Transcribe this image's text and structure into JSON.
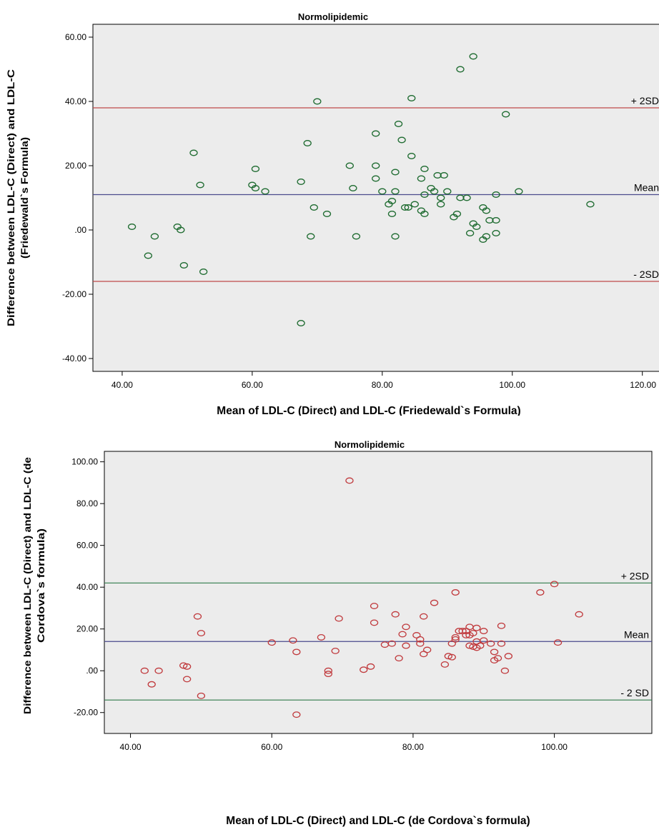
{
  "chart_data": [
    {
      "type": "scatter",
      "title": "Normolipidemic",
      "xlabel": "Mean of LDL-C (Direct) and LDL-C (Friedewald`s Formula)",
      "ylabel_lines": [
        "Difference between LDL-C (Direct) and LDL-C",
        "(Friedewald`s Formula)"
      ],
      "xlim": [
        35.5,
        123
      ],
      "ylim": [
        -44,
        64
      ],
      "x_ticks": [
        40,
        60,
        80,
        100,
        120
      ],
      "x_tick_labels": [
        "40.00",
        "60.00",
        "80.00",
        "100.00",
        "120.00"
      ],
      "y_ticks": [
        60,
        40,
        20,
        0,
        -20,
        -40
      ],
      "y_tick_labels": [
        "60.00",
        "40.00",
        "20.00",
        ".00",
        "-20.00",
        "-40.00"
      ],
      "marker_color": "#1e6b30",
      "background": "#ececec",
      "reference_lines": [
        {
          "label": "+ 2SD",
          "y": 38,
          "color": "#c0484a"
        },
        {
          "label": "Mean",
          "y": 11,
          "color": "#4a4a8c"
        },
        {
          "label": "- 2SD",
          "y": -16,
          "color": "#c0484a"
        }
      ],
      "points": [
        [
          41.5,
          1
        ],
        [
          44,
          -8
        ],
        [
          45,
          -2
        ],
        [
          48.5,
          1
        ],
        [
          49,
          0
        ],
        [
          49.5,
          -11
        ],
        [
          51,
          24
        ],
        [
          52,
          14
        ],
        [
          52.5,
          -13
        ],
        [
          60,
          14
        ],
        [
          60.5,
          13
        ],
        [
          60.5,
          19
        ],
        [
          62,
          12
        ],
        [
          67.5,
          15
        ],
        [
          67.5,
          -29
        ],
        [
          68.5,
          27
        ],
        [
          69,
          -2
        ],
        [
          69.5,
          7
        ],
        [
          70,
          40
        ],
        [
          71.5,
          5
        ],
        [
          75,
          20
        ],
        [
          75.5,
          13
        ],
        [
          76,
          -2
        ],
        [
          79,
          30
        ],
        [
          79,
          20
        ],
        [
          79,
          16
        ],
        [
          80,
          12
        ],
        [
          81,
          8
        ],
        [
          81.5,
          5
        ],
        [
          81.5,
          9
        ],
        [
          82,
          12
        ],
        [
          82,
          18
        ],
        [
          82,
          -2
        ],
        [
          82.5,
          33
        ],
        [
          83,
          28
        ],
        [
          83.5,
          7
        ],
        [
          84,
          7
        ],
        [
          84.5,
          41
        ],
        [
          84.5,
          23
        ],
        [
          85,
          8
        ],
        [
          86,
          16
        ],
        [
          86,
          6
        ],
        [
          86.5,
          19
        ],
        [
          86.5,
          11
        ],
        [
          86.5,
          5
        ],
        [
          87.5,
          13
        ],
        [
          88,
          12
        ],
        [
          88.5,
          17
        ],
        [
          89,
          10
        ],
        [
          89,
          8
        ],
        [
          89.5,
          17
        ],
        [
          90,
          12
        ],
        [
          91,
          4
        ],
        [
          91.5,
          5
        ],
        [
          92,
          50
        ],
        [
          92,
          10
        ],
        [
          93,
          10
        ],
        [
          93.5,
          -1
        ],
        [
          94,
          54
        ],
        [
          94,
          2
        ],
        [
          94.5,
          1
        ],
        [
          95.5,
          7
        ],
        [
          95.5,
          -3
        ],
        [
          96,
          6
        ],
        [
          96,
          -2
        ],
        [
          96.5,
          3
        ],
        [
          97.5,
          11
        ],
        [
          97.5,
          3
        ],
        [
          97.5,
          -1
        ],
        [
          99,
          36
        ],
        [
          101,
          12
        ],
        [
          112,
          8
        ]
      ]
    },
    {
      "type": "scatter",
      "title": "Normolipidemic",
      "xlabel": "Mean of LDL-C (Direct) and LDL-C (de Cordova`s formula)",
      "ylabel_lines": [
        "Difference between LDL-C (Direct) and LDL-C (de",
        "Cordova`s formula)"
      ],
      "xlim": [
        36.3,
        113.8
      ],
      "ylim": [
        -30,
        105
      ],
      "x_ticks": [
        40,
        60,
        80,
        100
      ],
      "x_tick_labels": [
        "40.00",
        "60.00",
        "80.00",
        "100.00"
      ],
      "y_ticks": [
        100,
        80,
        60,
        40,
        20,
        0,
        -20
      ],
      "y_tick_labels": [
        "100.00",
        "80.00",
        "60.00",
        "40.00",
        "20.00",
        ".00",
        "-20.00"
      ],
      "marker_color": "#c0393c",
      "background": "#ececec",
      "reference_lines": [
        {
          "label": "+ 2SD",
          "y": 42,
          "color": "#2f7a4a"
        },
        {
          "label": "Mean",
          "y": 14,
          "color": "#4a4a8c"
        },
        {
          "label": "- 2 SD",
          "y": -14,
          "color": "#2f7a4a"
        }
      ],
      "points": [
        [
          42,
          0
        ],
        [
          43,
          -6.5
        ],
        [
          44,
          0
        ],
        [
          47.5,
          2.5
        ],
        [
          48,
          -4
        ],
        [
          48,
          2
        ],
        [
          49.5,
          26
        ],
        [
          50,
          18
        ],
        [
          50,
          -12
        ],
        [
          60,
          13.5
        ],
        [
          63,
          14.5
        ],
        [
          63.5,
          9
        ],
        [
          63.5,
          -21
        ],
        [
          67,
          16
        ],
        [
          68,
          0
        ],
        [
          68,
          -1.5
        ],
        [
          69,
          9.5
        ],
        [
          69.5,
          25
        ],
        [
          71,
          91
        ],
        [
          73,
          0.5
        ],
        [
          74,
          2
        ],
        [
          74.5,
          23
        ],
        [
          74.5,
          31
        ],
        [
          76,
          12.5
        ],
        [
          77,
          13
        ],
        [
          77.5,
          27
        ],
        [
          78,
          6
        ],
        [
          78.5,
          17.5
        ],
        [
          79,
          21
        ],
        [
          79,
          12
        ],
        [
          80.5,
          17
        ],
        [
          81,
          15
        ],
        [
          81,
          13
        ],
        [
          81.5,
          26
        ],
        [
          81.5,
          8
        ],
        [
          82,
          10
        ],
        [
          83,
          32.5
        ],
        [
          84.5,
          3
        ],
        [
          85,
          7
        ],
        [
          85.5,
          13
        ],
        [
          85.5,
          6.5
        ],
        [
          86,
          15
        ],
        [
          86,
          16
        ],
        [
          86,
          37.5
        ],
        [
          86.5,
          19
        ],
        [
          87,
          19
        ],
        [
          87.5,
          17
        ],
        [
          87.5,
          19
        ],
        [
          88,
          21
        ],
        [
          88,
          17
        ],
        [
          88,
          12
        ],
        [
          88.5,
          11.5
        ],
        [
          88.5,
          18
        ],
        [
          89,
          11
        ],
        [
          89,
          14
        ],
        [
          89,
          20.5
        ],
        [
          89.5,
          12
        ],
        [
          90,
          19
        ],
        [
          90,
          14.5
        ],
        [
          91,
          13
        ],
        [
          91.5,
          9
        ],
        [
          91.5,
          5
        ],
        [
          92,
          6
        ],
        [
          92.5,
          21.5
        ],
        [
          92.5,
          13
        ],
        [
          93,
          0
        ],
        [
          93.5,
          7
        ],
        [
          98,
          37.5
        ],
        [
          100,
          41.5
        ],
        [
          100.5,
          13.5
        ],
        [
          103.5,
          27
        ]
      ]
    }
  ]
}
